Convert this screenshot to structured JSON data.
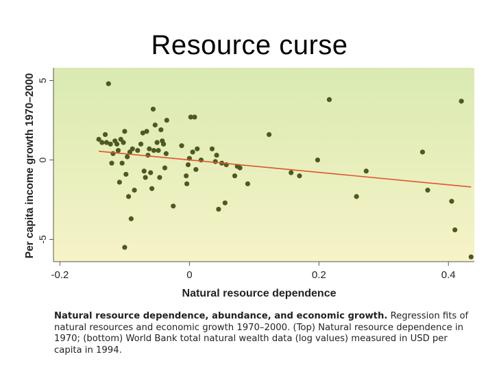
{
  "slide": {
    "title": "Resource curse"
  },
  "chart_data": {
    "type": "scatter",
    "title": "",
    "xlabel": "Natural resource dependence",
    "ylabel": "Per capita income growth 1970–2000",
    "xlim": [
      -0.21,
      0.44
    ],
    "ylim": [
      -6.4,
      5.8
    ],
    "x_ticks": [
      -0.2,
      0,
      0.2,
      0.4
    ],
    "x_tick_labels": [
      "-0.2",
      "0",
      "0.2",
      "0.4"
    ],
    "y_ticks": [
      5,
      0,
      -5
    ],
    "y_tick_labels": [
      "5",
      "0",
      "-5"
    ],
    "grid": false,
    "background_gradient": [
      "#d9eab1",
      "#f6f3c8"
    ],
    "point_color": "#4c5a1f",
    "line_color": "#e2522b",
    "points": [
      [
        -0.14,
        1.3
      ],
      [
        -0.135,
        1.1
      ],
      [
        -0.13,
        1.6
      ],
      [
        -0.128,
        1.1
      ],
      [
        -0.125,
        4.8
      ],
      [
        -0.122,
        1.0
      ],
      [
        -0.12,
        -0.2
      ],
      [
        -0.118,
        0.4
      ],
      [
        -0.115,
        1.2
      ],
      [
        -0.112,
        1.0
      ],
      [
        -0.11,
        0.6
      ],
      [
        -0.108,
        -1.4
      ],
      [
        -0.106,
        1.3
      ],
      [
        -0.104,
        -0.2
      ],
      [
        -0.102,
        1.1
      ],
      [
        -0.1,
        1.8
      ],
      [
        -0.1,
        -5.5
      ],
      [
        -0.098,
        -0.9
      ],
      [
        -0.096,
        0.2
      ],
      [
        -0.094,
        -2.3
      ],
      [
        -0.092,
        0.5
      ],
      [
        -0.09,
        -3.7
      ],
      [
        -0.088,
        0.7
      ],
      [
        -0.085,
        -1.9
      ],
      [
        -0.08,
        0.6
      ],
      [
        -0.075,
        1.0
      ],
      [
        -0.072,
        1.7
      ],
      [
        -0.07,
        -0.7
      ],
      [
        -0.068,
        -1.1
      ],
      [
        -0.066,
        1.8
      ],
      [
        -0.064,
        0.3
      ],
      [
        -0.062,
        0.7
      ],
      [
        -0.06,
        -0.8
      ],
      [
        -0.058,
        -1.8
      ],
      [
        -0.056,
        3.2
      ],
      [
        -0.055,
        0.6
      ],
      [
        -0.053,
        2.2
      ],
      [
        -0.05,
        1.1
      ],
      [
        -0.048,
        0.6
      ],
      [
        -0.046,
        -1.1
      ],
      [
        -0.044,
        1.9
      ],
      [
        -0.042,
        1.2
      ],
      [
        -0.04,
        1.0
      ],
      [
        -0.038,
        -0.5
      ],
      [
        -0.036,
        0.4
      ],
      [
        -0.035,
        2.5
      ],
      [
        -0.025,
        -2.9
      ],
      [
        -0.012,
        0.9
      ],
      [
        -0.005,
        -1.0
      ],
      [
        -0.004,
        -1.5
      ],
      [
        -0.002,
        -0.3
      ],
      [
        0.0,
        0.1
      ],
      [
        0.002,
        2.7
      ],
      [
        0.005,
        0.5
      ],
      [
        0.008,
        2.7
      ],
      [
        0.01,
        -0.6
      ],
      [
        0.012,
        0.7
      ],
      [
        0.018,
        0.0
      ],
      [
        0.035,
        0.7
      ],
      [
        0.04,
        -0.1
      ],
      [
        0.042,
        0.3
      ],
      [
        0.045,
        -3.1
      ],
      [
        0.05,
        -0.2
      ],
      [
        0.055,
        -2.7
      ],
      [
        0.057,
        -0.3
      ],
      [
        0.07,
        -1.0
      ],
      [
        0.074,
        -0.4
      ],
      [
        0.078,
        -0.5
      ],
      [
        0.09,
        -1.5
      ],
      [
        0.123,
        1.6
      ],
      [
        0.157,
        -0.8
      ],
      [
        0.17,
        -1.0
      ],
      [
        0.198,
        0.0
      ],
      [
        0.216,
        3.8
      ],
      [
        0.258,
        -2.3
      ],
      [
        0.273,
        -0.7
      ],
      [
        0.36,
        0.5
      ],
      [
        0.368,
        -1.9
      ],
      [
        0.405,
        -2.6
      ],
      [
        0.41,
        -4.4
      ],
      [
        0.42,
        3.7
      ],
      [
        0.435,
        -6.1
      ]
    ],
    "regression": {
      "x": [
        -0.14,
        0.435
      ],
      "y": [
        0.55,
        -1.7
      ]
    }
  },
  "caption": {
    "bold": "Natural resource dependence, abundance, and economic growth.",
    "text": " Regression fits of natural resources and economic growth 1970–2000. (Top) Natural resource dependence in 1970; (bottom) World Bank total natural wealth data (log values) measured in USD per capita in 1994."
  }
}
